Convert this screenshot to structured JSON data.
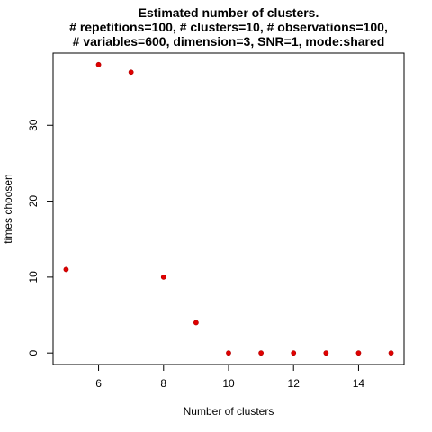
{
  "chart_data": {
    "type": "scatter",
    "title": [
      "Estimated number of clusters.",
      "# repetitions=100, # clusters=10, # observations=100,",
      "# variables=600, dimension=3, SNR=1, mode:shared"
    ],
    "xlabel": "Number of clusters",
    "ylabel": "times choosen",
    "x": [
      5,
      6,
      7,
      8,
      9,
      10,
      11,
      12,
      13,
      14,
      15
    ],
    "y": [
      11,
      38,
      37,
      10,
      4,
      0,
      0,
      0,
      0,
      0,
      0
    ],
    "xlim": [
      4.6,
      15.4
    ],
    "ylim": [
      -1.52,
      39.52
    ],
    "xticks": [
      6,
      8,
      10,
      12,
      14
    ],
    "yticks": [
      0,
      10,
      20,
      30
    ],
    "point_color": "#e00000",
    "grid": false
  }
}
